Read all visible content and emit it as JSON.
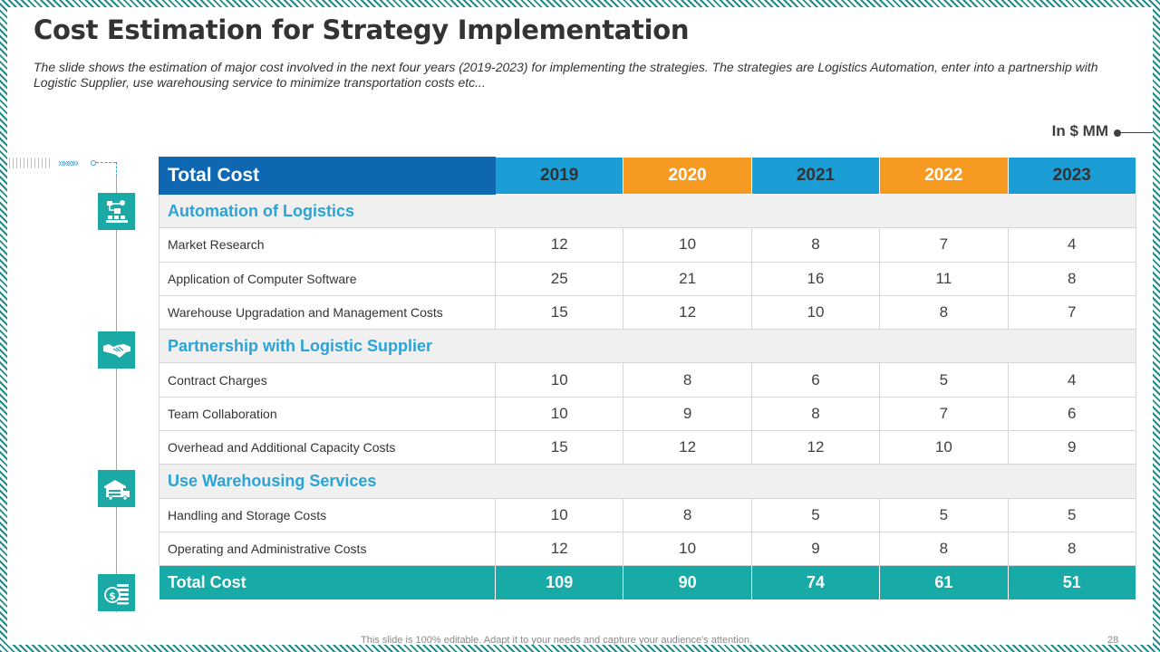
{
  "slide": {
    "title": "Cost Estimation for Strategy Implementation",
    "subtitle": "The slide shows the estimation of major cost involved in the next four years (2019-2023) for implementing the strategies. The strategies are Logistics Automation, enter into a partnership with Logistic Supplier, use warehousing service to minimize transportation costs etc...",
    "unit_label": "In $ MM",
    "footer_note": "This slide is 100% editable. Adapt it to your needs and capture your audience's attention.",
    "page_number": "28"
  },
  "decor": {
    "chevrons": "»»»»"
  },
  "table": {
    "header_label": "Total Cost",
    "years": [
      "2019",
      "2020",
      "2021",
      "2022",
      "2023"
    ],
    "header_colors": [
      "#1b9dd6",
      "#f79a22",
      "#1b9dd6",
      "#f79a22",
      "#1b9dd6"
    ],
    "categories": [
      {
        "name": "Automation  of Logistics",
        "icon": "logistics-automation-icon",
        "rows": [
          {
            "label": "Market Research",
            "values": [
              "12",
              "10",
              "8",
              "7",
              "4"
            ]
          },
          {
            "label": "Application of Computer  Software",
            "values": [
              "25",
              "21",
              "16",
              "11",
              "8"
            ]
          },
          {
            "label": "Warehouse Upgradation and Management Costs",
            "values": [
              "15",
              "12",
              "10",
              "8",
              "7"
            ]
          }
        ]
      },
      {
        "name": "Partnership  with Logistic Supplier",
        "icon": "handshake-icon",
        "rows": [
          {
            "label": "Contract Charges",
            "values": [
              "10",
              "8",
              "6",
              "5",
              "4"
            ]
          },
          {
            "label": "Team Collaboration",
            "values": [
              "10",
              "9",
              "8",
              "7",
              "6"
            ]
          },
          {
            "label": "Overhead and Additional  Capacity Costs",
            "values": [
              "15",
              "12",
              "12",
              "10",
              "9"
            ]
          }
        ]
      },
      {
        "name": "Use Warehousing  Services",
        "icon": "warehouse-truck-icon",
        "rows": [
          {
            "label": "Handling and Storage Costs",
            "values": [
              "10",
              "8",
              "5",
              "5",
              "5"
            ]
          },
          {
            "label": "Operating and Administrative Costs",
            "values": [
              "12",
              "10",
              "9",
              "8",
              "8"
            ]
          }
        ]
      }
    ],
    "total": {
      "label": "Total  Cost",
      "icon": "money-stack-icon",
      "values": [
        "109",
        "90",
        "74",
        "61",
        "51"
      ]
    }
  },
  "colors": {
    "header_total": "#0e67b0",
    "blue": "#1b9dd6",
    "orange": "#f79a22",
    "teal": "#17aaa7",
    "category_text": "#2aa3d7"
  }
}
